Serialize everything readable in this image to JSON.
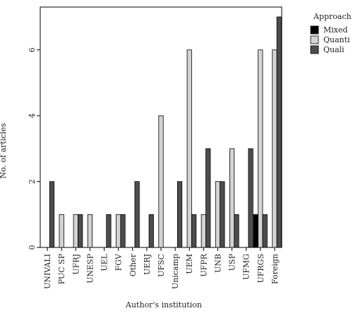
{
  "chart_data": {
    "type": "bar",
    "xlabel": "Author's institution",
    "ylabel": "No. of articles",
    "ylim": [
      0,
      7.3
    ],
    "yticks": [
      0,
      2,
      4,
      6
    ],
    "grid": false,
    "legend": {
      "title": "Approach",
      "placement": "right"
    },
    "categories": [
      "UNIVALI",
      "PUC SP",
      "UFRJ",
      "UNESP",
      "UEL",
      "FGV",
      "Other",
      "UERJ",
      "UFSC",
      "Unicamp",
      "UEM",
      "UFPR",
      "UNB",
      "USP",
      "UFMG",
      "UFRGS",
      "Foreign"
    ],
    "series": [
      {
        "name": "Mixed",
        "color": "#000000",
        "values": [
          0,
          0,
          0,
          0,
          0,
          0,
          0,
          0,
          0,
          0,
          0,
          0,
          0,
          0,
          0,
          1,
          0
        ]
      },
      {
        "name": "Quanti",
        "color": "#d3d3d3",
        "values": [
          0,
          1,
          1,
          1,
          0,
          1,
          0,
          0,
          4,
          0,
          6,
          1,
          2,
          3,
          0,
          6,
          6
        ]
      },
      {
        "name": "Quali",
        "color": "#4d4d4d",
        "values": [
          2,
          0,
          1,
          0,
          1,
          1,
          2,
          1,
          0,
          2,
          1,
          3,
          2,
          1,
          3,
          1,
          7
        ]
      }
    ]
  }
}
